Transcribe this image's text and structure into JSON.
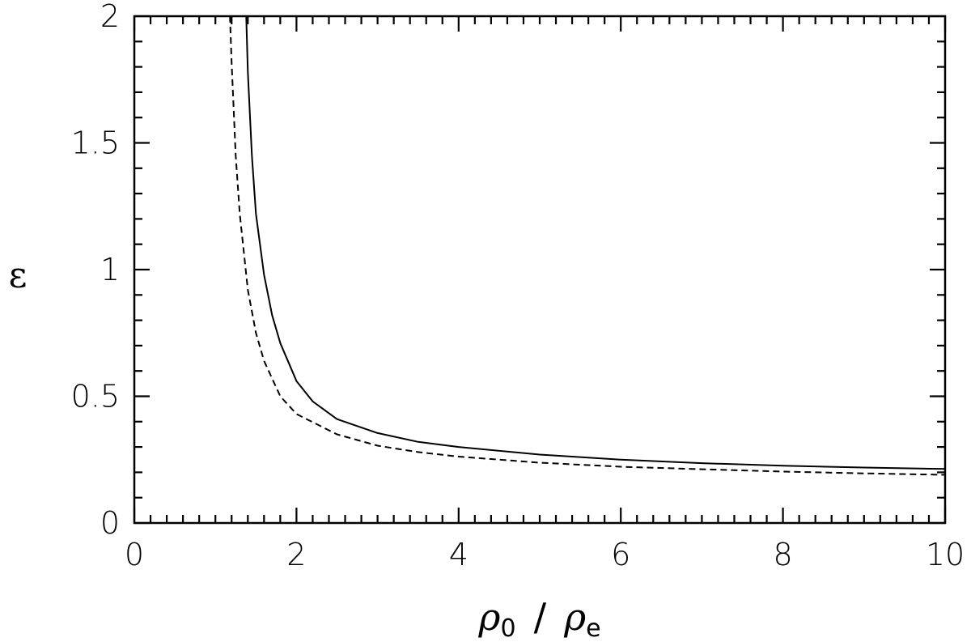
{
  "chart_data": {
    "type": "line",
    "xlim": [
      0,
      10
    ],
    "ylim": [
      0,
      2
    ],
    "x_ticks": [
      "0",
      "2",
      "4",
      "6",
      "8",
      "10"
    ],
    "y_ticks": [
      "0",
      "0.5",
      "1",
      "1.5",
      "2"
    ],
    "xlabel": {
      "rho1": "ρ",
      "sub1": "0",
      "slash": "/",
      "rho2": "ρ",
      "sub2": "e"
    },
    "ylabel": "ε",
    "grid": false,
    "legend": "none",
    "series": [
      {
        "style": "solid",
        "x": [
          1.38,
          1.4,
          1.45,
          1.5,
          1.6,
          1.7,
          1.8,
          2.0,
          2.2,
          2.5,
          3.0,
          3.5,
          4.0,
          5.0,
          6.0,
          7.0,
          8.0,
          9.0,
          10.0
        ],
        "y": [
          2.0,
          1.78,
          1.45,
          1.22,
          0.98,
          0.82,
          0.71,
          0.56,
          0.48,
          0.41,
          0.355,
          0.32,
          0.3,
          0.27,
          0.25,
          0.236,
          0.226,
          0.219,
          0.213
        ]
      },
      {
        "style": "dashed",
        "x": [
          1.18,
          1.2,
          1.25,
          1.3,
          1.4,
          1.5,
          1.6,
          1.8,
          2.0,
          2.5,
          3.0,
          3.5,
          4.0,
          5.0,
          6.0,
          7.0,
          8.0,
          9.0,
          10.0
        ],
        "y": [
          2.0,
          1.82,
          1.45,
          1.22,
          0.92,
          0.75,
          0.64,
          0.5,
          0.43,
          0.35,
          0.305,
          0.28,
          0.262,
          0.238,
          0.222,
          0.212,
          0.203,
          0.196,
          0.19
        ]
      }
    ]
  }
}
